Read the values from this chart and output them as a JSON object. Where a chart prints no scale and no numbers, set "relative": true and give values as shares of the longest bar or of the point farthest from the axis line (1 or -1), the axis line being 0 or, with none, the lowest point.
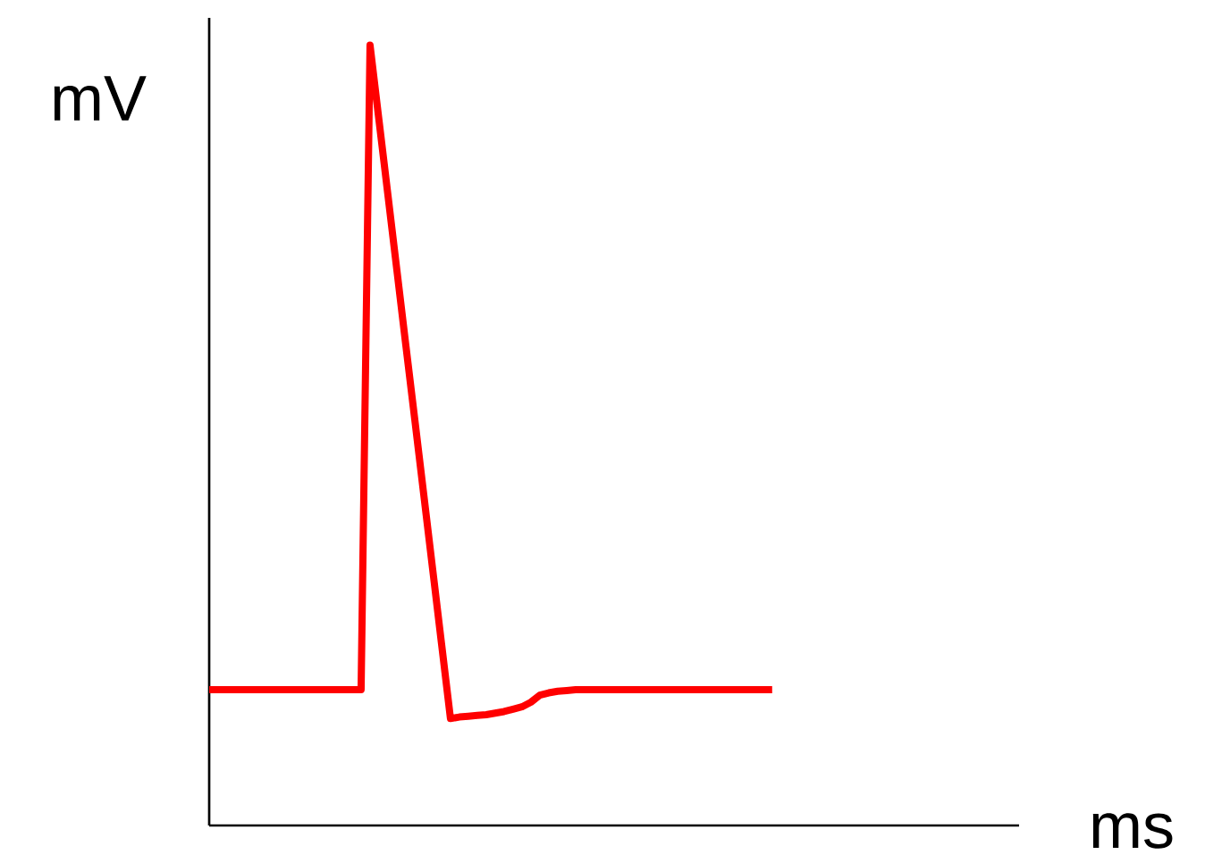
{
  "chart_data": {
    "type": "line",
    "relative": true,
    "xlabel": "ms",
    "ylabel": "mV",
    "color": "#ff0000",
    "categories": [
      null,
      null,
      null,
      null,
      null,
      null,
      null,
      null,
      null,
      null,
      null,
      null,
      null,
      null,
      null,
      null,
      null,
      null,
      null,
      null,
      null,
      null,
      null,
      null,
      null,
      null,
      null,
      null,
      null,
      null,
      null,
      null,
      null,
      null,
      null,
      null,
      null,
      null,
      null,
      null,
      null,
      null,
      null,
      null,
      null,
      null,
      null,
      null,
      null,
      null,
      null,
      null,
      null,
      null,
      null,
      null,
      null,
      null,
      null,
      null,
      null,
      null,
      null,
      null,
      null,
      null,
      null,
      null,
      null,
      null,
      null,
      null,
      null,
      null,
      null,
      null,
      null,
      null,
      null,
      null,
      null,
      null,
      null,
      null,
      null,
      null,
      null,
      null,
      null,
      null,
      null
    ],
    "values": [
      0.174,
      0.174,
      0.174,
      0.174,
      0.174,
      0.174,
      0.174,
      0.174,
      0.174,
      0.174,
      0.174,
      0.174,
      0.174,
      0.174,
      0.174,
      0.174,
      0.174,
      0.174,
      1,
      0.904,
      0.808,
      0.712,
      0.616,
      0.521,
      0.425,
      0.329,
      0.233,
      0.137,
      0.139,
      0.14,
      0.141,
      0.142,
      0.144,
      0.146,
      0.149,
      0.152,
      0.158,
      0.167,
      0.17,
      0.172,
      0.173,
      0.174,
      0.174,
      0.174,
      0.174,
      0.174,
      0.174,
      0.174,
      0.174,
      0.174,
      0.174,
      0.174,
      0.174,
      0.174,
      0.174,
      0.174,
      0.174,
      0.174,
      0.174,
      0.174,
      0.174,
      0.174,
      0.174,
      0.174,
      null,
      null,
      null,
      null,
      null,
      null,
      null,
      null,
      null,
      null,
      null,
      null,
      null,
      null,
      null,
      null,
      null,
      null,
      null,
      null,
      null,
      null,
      null,
      null,
      null,
      null,
      null
    ]
  }
}
